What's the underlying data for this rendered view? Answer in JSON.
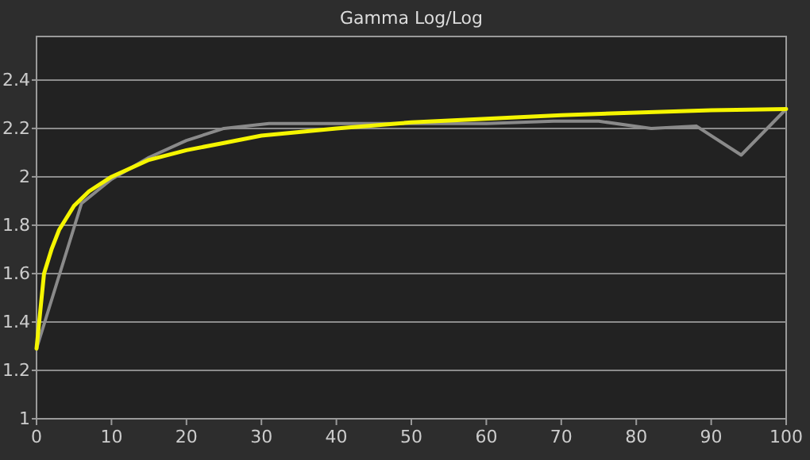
{
  "chart_data": {
    "type": "line",
    "title": "Gamma Log/Log",
    "series": [
      {
        "color": "#8a8a8a",
        "x": [
          0,
          6,
          10,
          15,
          20,
          25,
          31,
          40,
          50,
          60,
          69,
          75,
          82,
          88,
          94,
          100
        ],
        "values": [
          1.29,
          1.89,
          1.99,
          2.08,
          2.15,
          2.2,
          2.22,
          2.22,
          2.22,
          2.22,
          2.23,
          2.23,
          2.2,
          2.21,
          2.09,
          2.28
        ]
      },
      {
        "color": "#f5f500",
        "x": [
          0,
          1,
          2,
          3,
          5,
          7,
          10,
          15,
          20,
          25,
          30,
          40,
          50,
          60,
          70,
          80,
          90,
          100
        ],
        "values": [
          1.29,
          1.6,
          1.7,
          1.78,
          1.88,
          1.94,
          2.0,
          2.07,
          2.11,
          2.14,
          2.17,
          2.2,
          2.225,
          2.24,
          2.255,
          2.265,
          2.275,
          2.28
        ]
      }
    ],
    "xlim": [
      0,
      100
    ],
    "xticks": [
      0,
      10,
      20,
      30,
      40,
      50,
      60,
      70,
      80,
      90,
      100
    ],
    "ylim": [
      1,
      2.58
    ],
    "yticks": [
      1,
      1.2,
      1.4,
      1.6,
      1.8,
      2,
      2.2,
      2.4
    ],
    "grid": "y",
    "marker": "none",
    "line_style": "solid"
  }
}
